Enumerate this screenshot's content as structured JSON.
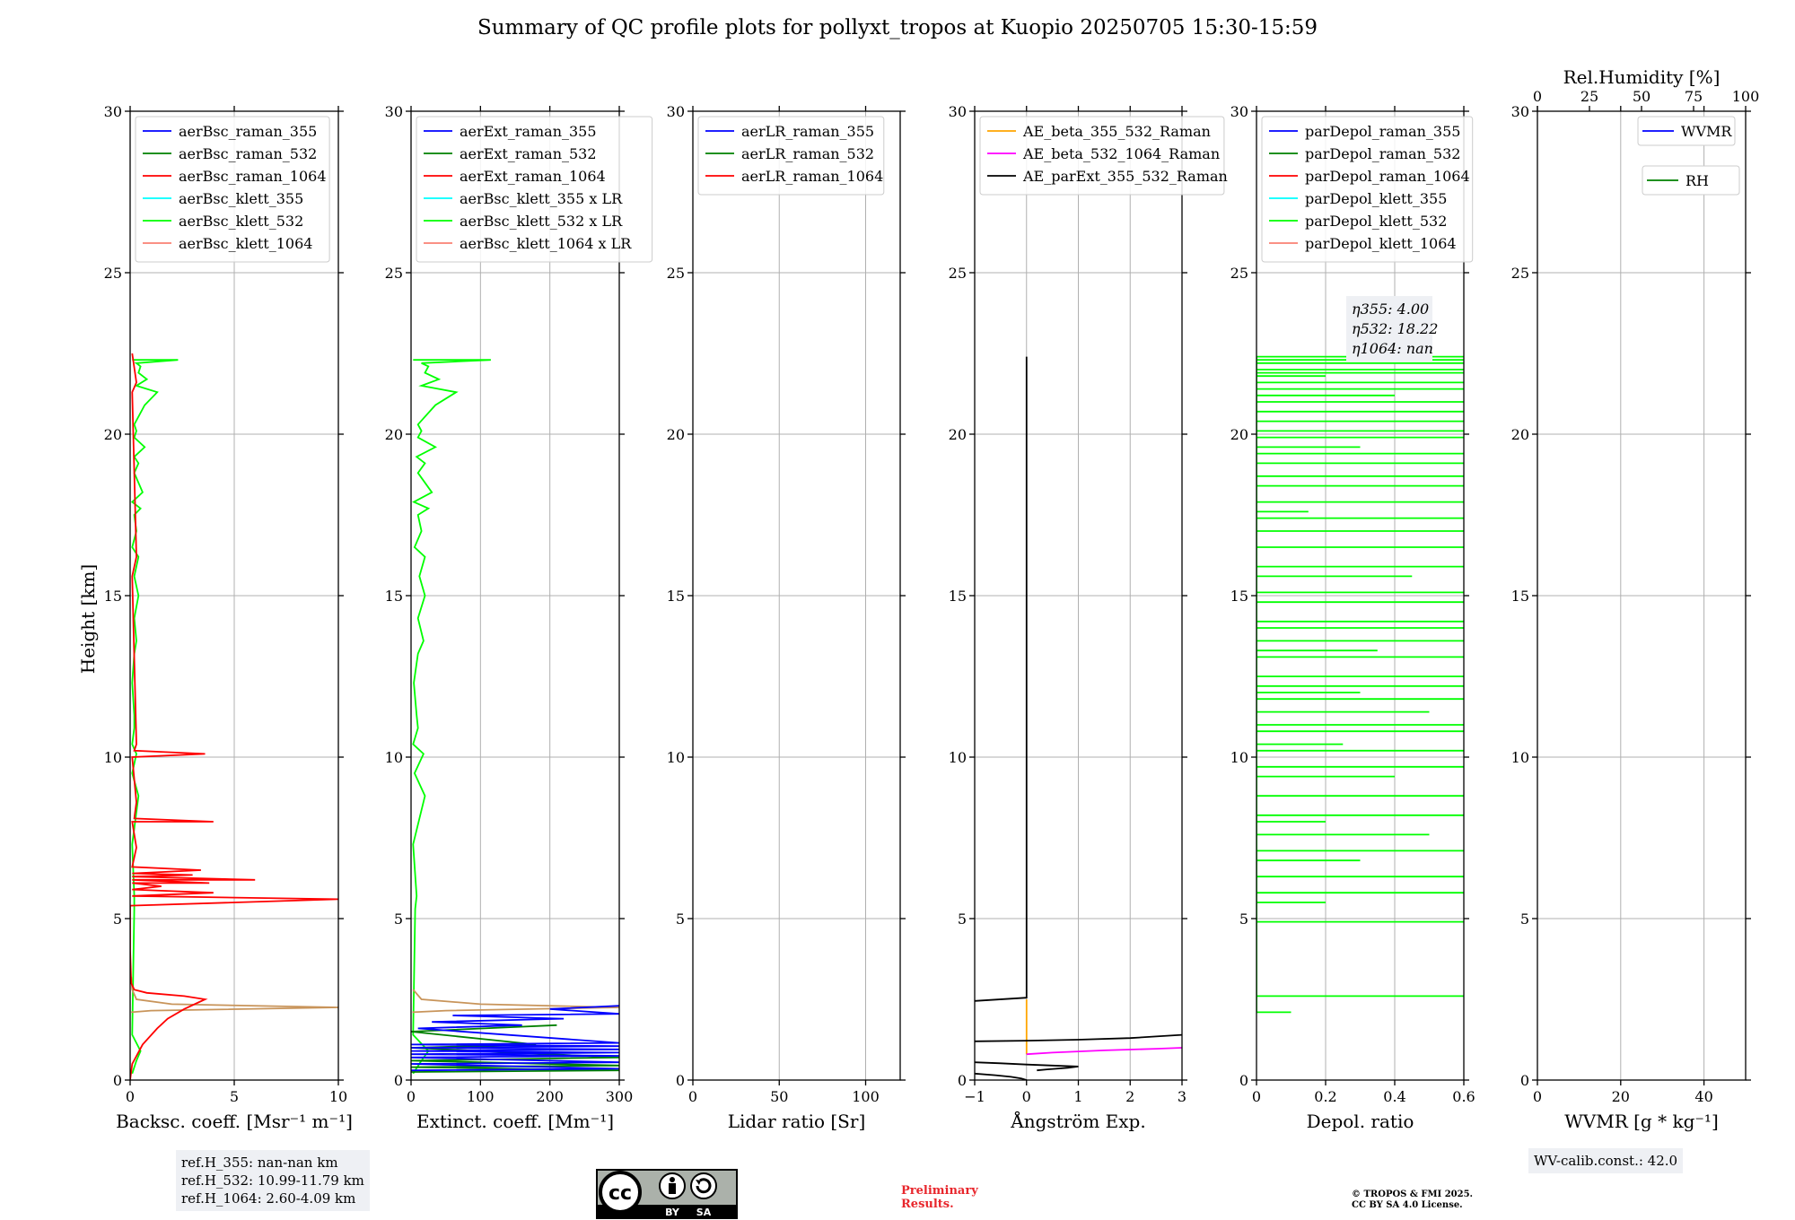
{
  "title": "Summary of QC profile plots for pollyxt_tropos at Kuopio 20250705 15:30-15:59",
  "shared_ylabel": "Height [km]",
  "chart_data": [
    {
      "id": "backscatter",
      "type": "line",
      "xlabel": "Backsc. coeff. [Msr⁻¹ m⁻¹]",
      "ylabel": "Height [km]",
      "xlim": [
        0,
        10
      ],
      "ylim": [
        0,
        30
      ],
      "xticks": [
        0,
        5,
        10
      ],
      "yticks": [
        0,
        5,
        10,
        15,
        20,
        25,
        30
      ],
      "grid": true,
      "legend_position": "top-left",
      "legend": [
        {
          "name": "aerBsc_raman_355",
          "color": "#0000ff"
        },
        {
          "name": "aerBsc_raman_532",
          "color": "#008000"
        },
        {
          "name": "aerBsc_raman_1064",
          "color": "#ff0000"
        },
        {
          "name": "aerBsc_klett_355",
          "color": "#00ffff"
        },
        {
          "name": "aerBsc_klett_532",
          "color": "#00ff00"
        },
        {
          "name": "aerBsc_klett_1064",
          "color": "#fa8072"
        }
      ],
      "series": [
        {
          "name": "aerBsc_klett_532",
          "color": "#00ff00",
          "x": [
            0.1,
            0.3,
            0.5,
            0.1,
            0.2,
            0.2,
            0.1,
            0.4,
            0.1,
            0.3,
            0.1,
            0.2,
            0.2,
            0.1,
            0.2,
            0.3,
            0.2,
            0.4,
            0.2,
            0.4,
            0.1,
            0.3,
            0.2,
            0.5,
            0.1,
            0.6,
            0.2,
            0.4,
            0.2,
            0.7,
            0.2,
            0.3,
            0.2,
            0.7,
            1.3,
            0.3,
            0.8,
            0.4,
            0.5,
            0.3,
            2.3,
            0.1
          ],
          "y": [
            0.2,
            0.6,
            0.9,
            1.4,
            5.3,
            5.7,
            7.3,
            8.8,
            9.5,
            10.1,
            10.4,
            10.9,
            11.3,
            12.3,
            13.2,
            13.6,
            14.3,
            15.0,
            15.6,
            16.2,
            16.5,
            17.0,
            17.5,
            17.7,
            17.9,
            18.2,
            18.8,
            19.1,
            19.3,
            19.6,
            19.9,
            20.1,
            20.3,
            20.9,
            21.3,
            21.5,
            21.7,
            21.9,
            22.1,
            22.2,
            22.3,
            22.3
          ]
        },
        {
          "name": "aerBsc_klett_1064",
          "color": "#c8945a",
          "x": [
            0.05,
            1.0,
            10.0,
            2.0,
            0.3,
            0.1,
            0.05
          ],
          "y": [
            2.1,
            2.15,
            2.25,
            2.35,
            2.5,
            2.8,
            3.2
          ]
        },
        {
          "name": "aerBsc_raman_1064",
          "color": "#ff0000",
          "x": [
            0.0,
            0.1,
            0.6,
            1.3,
            1.8,
            2.6,
            3.6,
            2.6,
            0.8,
            0.2,
            0.05,
            0.0,
            0.0,
            10.0,
            0.1,
            4.0,
            0.1,
            1.5,
            0.1,
            3.8,
            0.1,
            6.0,
            0.1,
            3.0,
            0.1,
            3.4,
            0.1,
            0.3,
            0.1,
            4.0,
            0.2,
            0.3,
            0.1,
            3.6,
            0.2,
            0.3,
            0.1,
            0.3,
            0.1,
            0.3,
            0.1
          ],
          "y": [
            0.0,
            0.5,
            1.1,
            1.6,
            1.9,
            2.2,
            2.5,
            2.6,
            2.7,
            2.8,
            3.0,
            4.0,
            5.4,
            5.6,
            5.7,
            5.8,
            5.9,
            6.0,
            6.1,
            6.1,
            6.2,
            6.2,
            6.3,
            6.35,
            6.4,
            6.5,
            6.6,
            7.2,
            8.0,
            8.0,
            8.1,
            8.6,
            10.0,
            10.1,
            10.2,
            10.4,
            15.6,
            16.2,
            21.3,
            21.6,
            22.5
          ]
        }
      ]
    },
    {
      "id": "extinction",
      "type": "line",
      "xlabel": "Extinct. coeff. [Mm⁻¹]",
      "xlim": [
        0,
        300
      ],
      "ylim": [
        0,
        30
      ],
      "xticks": [
        0,
        100,
        200,
        300
      ],
      "yticks": [
        0,
        5,
        10,
        15,
        20,
        25,
        30
      ],
      "grid": true,
      "legend_position": "top-left",
      "legend": [
        {
          "name": "aerExt_raman_355",
          "color": "#0000ff"
        },
        {
          "name": "aerExt_raman_532",
          "color": "#008000"
        },
        {
          "name": "aerExt_raman_1064",
          "color": "#ff0000"
        },
        {
          "name": "aerBsc_klett_355 x LR",
          "color": "#00ffff"
        },
        {
          "name": "aerBsc_klett_532 x LR",
          "color": "#00ff00"
        },
        {
          "name": "aerBsc_klett_1064 x LR",
          "color": "#fa8072"
        }
      ],
      "series": [
        {
          "name": "aerBsc_klett_532 x LR",
          "color": "#00ff00",
          "x": [
            3,
            15,
            25,
            3,
            6,
            8,
            3,
            20,
            5,
            18,
            3,
            10,
            8,
            4,
            10,
            18,
            10,
            20,
            12,
            20,
            5,
            15,
            10,
            25,
            4,
            30,
            10,
            20,
            8,
            35,
            10,
            15,
            10,
            35,
            65,
            15,
            40,
            20,
            25,
            15,
            115,
            3
          ],
          "y": [
            0.2,
            0.6,
            0.9,
            1.4,
            5.3,
            5.7,
            7.3,
            8.8,
            9.5,
            10.1,
            10.4,
            10.9,
            11.3,
            12.3,
            13.2,
            13.6,
            14.3,
            15.0,
            15.6,
            16.2,
            16.5,
            17.0,
            17.5,
            17.7,
            17.9,
            18.2,
            18.8,
            19.1,
            19.3,
            19.6,
            19.9,
            20.1,
            20.3,
            20.9,
            21.3,
            21.5,
            21.7,
            21.9,
            22.1,
            22.2,
            22.3,
            22.3
          ]
        },
        {
          "name": "aerBsc_klett_1064 x LR",
          "color": "#c8945a",
          "x": [
            2,
            50,
            300,
            100,
            15,
            3
          ],
          "y": [
            2.1,
            2.15,
            2.25,
            2.35,
            2.5,
            2.8
          ]
        },
        {
          "name": "aerExt_raman_532",
          "color": "#008000",
          "x": [
            0,
            300,
            0,
            300,
            0,
            300,
            0,
            180,
            0,
            210
          ],
          "y": [
            0.25,
            0.3,
            0.4,
            0.45,
            0.6,
            0.7,
            1.0,
            1.1,
            1.5,
            1.7
          ]
        },
        {
          "name": "aerExt_raman_355",
          "color": "#0000ff",
          "x": [
            0,
            300,
            0,
            300,
            0,
            300,
            0,
            300,
            0,
            300,
            0,
            300,
            0,
            300,
            10,
            160,
            30,
            220,
            60,
            300,
            200,
            300
          ],
          "y": [
            0.3,
            0.35,
            0.5,
            0.55,
            0.7,
            0.75,
            0.8,
            0.85,
            0.9,
            0.95,
            1.0,
            1.05,
            1.1,
            1.15,
            1.6,
            1.7,
            1.8,
            1.9,
            2.0,
            2.05,
            2.2,
            2.3
          ]
        }
      ]
    },
    {
      "id": "lidarratio",
      "type": "line",
      "xlabel": "Lidar ratio [Sr]",
      "xlim": [
        0,
        120
      ],
      "ylim": [
        0,
        30
      ],
      "xticks": [
        0,
        50,
        100
      ],
      "yticks": [
        0,
        5,
        10,
        15,
        20,
        25,
        30
      ],
      "grid": true,
      "legend_position": "top-left",
      "legend": [
        {
          "name": "aerLR_raman_355",
          "color": "#0000ff"
        },
        {
          "name": "aerLR_raman_532",
          "color": "#008000"
        },
        {
          "name": "aerLR_raman_1064",
          "color": "#ff0000"
        }
      ],
      "series": []
    },
    {
      "id": "angstrom",
      "type": "line",
      "xlabel": "Ångström Exp.",
      "xlim": [
        -1,
        3
      ],
      "ylim": [
        0,
        30
      ],
      "xticks": [
        -1,
        0,
        1,
        2,
        3
      ],
      "yticks": [
        0,
        5,
        10,
        15,
        20,
        25,
        30
      ],
      "grid": true,
      "legend_position": "top-left",
      "legend": [
        {
          "name": "AE_beta_355_532_Raman",
          "color": "#ffa500"
        },
        {
          "name": "AE_beta_532_1064_Raman",
          "color": "#ff00ff"
        },
        {
          "name": "AE_parExt_355_532_Raman",
          "color": "#000000"
        }
      ],
      "series": [
        {
          "name": "AE_beta_355_532_Raman",
          "color": "#ffa500",
          "x": [
            0,
            0
          ],
          "y": [
            0.8,
            2.5
          ]
        },
        {
          "name": "AE_beta_532_1064_Raman",
          "color": "#ff00ff",
          "x": [
            0,
            0.5,
            1.5,
            2.5,
            3.0
          ],
          "y": [
            0.8,
            0.85,
            0.92,
            0.97,
            1.0
          ]
        },
        {
          "name": "AE_parExt_355_532_Raman (upper)",
          "color": "#000000",
          "x": [
            0,
            0,
            -1
          ],
          "y": [
            22.4,
            2.55,
            2.45
          ]
        },
        {
          "name": "AE_parExt_355_532_Raman (lower)",
          "color": "#000000",
          "x": [
            -1,
            0,
            1,
            2,
            2.5,
            3
          ],
          "y": [
            1.2,
            1.22,
            1.25,
            1.3,
            1.35,
            1.4
          ]
        },
        {
          "name": "AE_parExt_355_532_Raman (near ground)",
          "color": "#000000",
          "x": [
            -1,
            -0.5,
            0,
            0.5,
            1,
            0.8,
            0.4,
            0.2
          ],
          "y": [
            0.55,
            0.52,
            0.48,
            0.45,
            0.42,
            0.38,
            0.33,
            0.3
          ]
        },
        {
          "name": "AE_parExt_355_532_Raman (surface)",
          "color": "#000000",
          "x": [
            -1,
            -0.6,
            -0.3,
            -0.1,
            0.0
          ],
          "y": [
            0.2,
            0.15,
            0.1,
            0.05,
            0.0
          ]
        }
      ]
    },
    {
      "id": "depol",
      "type": "line",
      "xlabel": "Depol. ratio",
      "xlim": [
        0,
        0.6
      ],
      "ylim": [
        0,
        30
      ],
      "xticks": [
        0.0,
        0.2,
        0.4,
        0.6
      ],
      "yticks": [
        0,
        5,
        10,
        15,
        20,
        25,
        30
      ],
      "grid": true,
      "legend_position": "top-left",
      "legend": [
        {
          "name": "parDepol_raman_355",
          "color": "#0000ff"
        },
        {
          "name": "parDepol_raman_532",
          "color": "#008000"
        },
        {
          "name": "parDepol_raman_1064",
          "color": "#ff0000"
        },
        {
          "name": "parDepol_klett_355",
          "color": "#00ffff"
        },
        {
          "name": "parDepol_klett_532",
          "color": "#00ff00"
        },
        {
          "name": "parDepol_klett_1064",
          "color": "#fa8072"
        }
      ],
      "eta": [
        {
          "label": "η355",
          "value": "4.00"
        },
        {
          "label": "η532",
          "value": "18.22"
        },
        {
          "label": "η1064",
          "value": "nan"
        }
      ],
      "series": [
        {
          "name": "parDepol_klett_532",
          "color": "#00ff00",
          "spikes": true,
          "x": [
            0.1,
            0.15,
            0.6,
            0.6,
            0.2,
            0.6,
            0.6,
            0.3,
            0.6,
            0.5,
            0.2,
            0.6,
            0.6,
            0.4,
            0.6,
            0.6,
            0.25,
            0.6,
            0.6,
            0.5,
            0.6,
            0.3,
            0.6,
            0.6,
            0.6,
            0.35,
            0.6,
            0.6,
            0.6,
            0.6,
            0.6,
            0.45,
            0.6,
            0.6,
            0.6,
            0.6,
            0.15,
            0.6,
            0.6,
            0.6,
            0.6,
            0.6,
            0.3,
            0.6,
            0.6,
            0.6,
            0.6,
            0.6,
            0.4,
            0.6,
            0.6,
            0.2,
            0.6,
            0.6,
            0.6,
            0.6,
            0.6
          ],
          "y": [
            2.1,
            2.6,
            2.6,
            4.9,
            5.5,
            5.8,
            6.3,
            6.8,
            7.1,
            7.6,
            8.0,
            8.2,
            8.8,
            9.4,
            9.7,
            10.2,
            10.4,
            10.8,
            11.0,
            11.4,
            11.8,
            12.0,
            12.2,
            12.5,
            13.1,
            13.3,
            13.6,
            14.0,
            14.2,
            14.8,
            15.1,
            15.6,
            15.9,
            16.5,
            17.0,
            17.4,
            17.6,
            17.9,
            18.4,
            18.7,
            19.1,
            19.4,
            19.6,
            19.9,
            20.1,
            20.4,
            20.7,
            21.0,
            21.2,
            21.4,
            21.6,
            21.8,
            21.9,
            22.0,
            22.2,
            22.3,
            22.4
          ]
        }
      ]
    },
    {
      "id": "wvmr",
      "type": "line",
      "xlabel": "WVMR [g * kg⁻¹]",
      "top_xlabel": "Rel.Humidity [%]",
      "xlim": [
        0,
        50
      ],
      "ylim": [
        0,
        30
      ],
      "xticks": [
        0,
        20,
        40
      ],
      "top_xticks": [
        0,
        25,
        50,
        75,
        100
      ],
      "top_xlim": [
        0,
        100
      ],
      "yticks": [
        0,
        5,
        10,
        15,
        20,
        25,
        30
      ],
      "grid": true,
      "legend_position": "top-right",
      "legend": [
        {
          "name": "WVMR",
          "color": "#0000ff"
        },
        {
          "name": "RH",
          "color": "#008000"
        }
      ],
      "series": []
    }
  ],
  "ref_heights": [
    "ref.H_355: nan-nan km",
    "ref.H_532: 10.99-11.79 km",
    "ref.H_1064: 2.60-4.09 km"
  ],
  "wv_calib": "WV-calib.const.: 42.0",
  "license_badge": {
    "cc": "cc",
    "by": "BY",
    "sa": "SA"
  },
  "preliminary": [
    "Preliminary",
    "Results."
  ],
  "copyright": [
    "© TROPOS & FMI 2025.",
    "CC BY SA 4.0 License."
  ]
}
